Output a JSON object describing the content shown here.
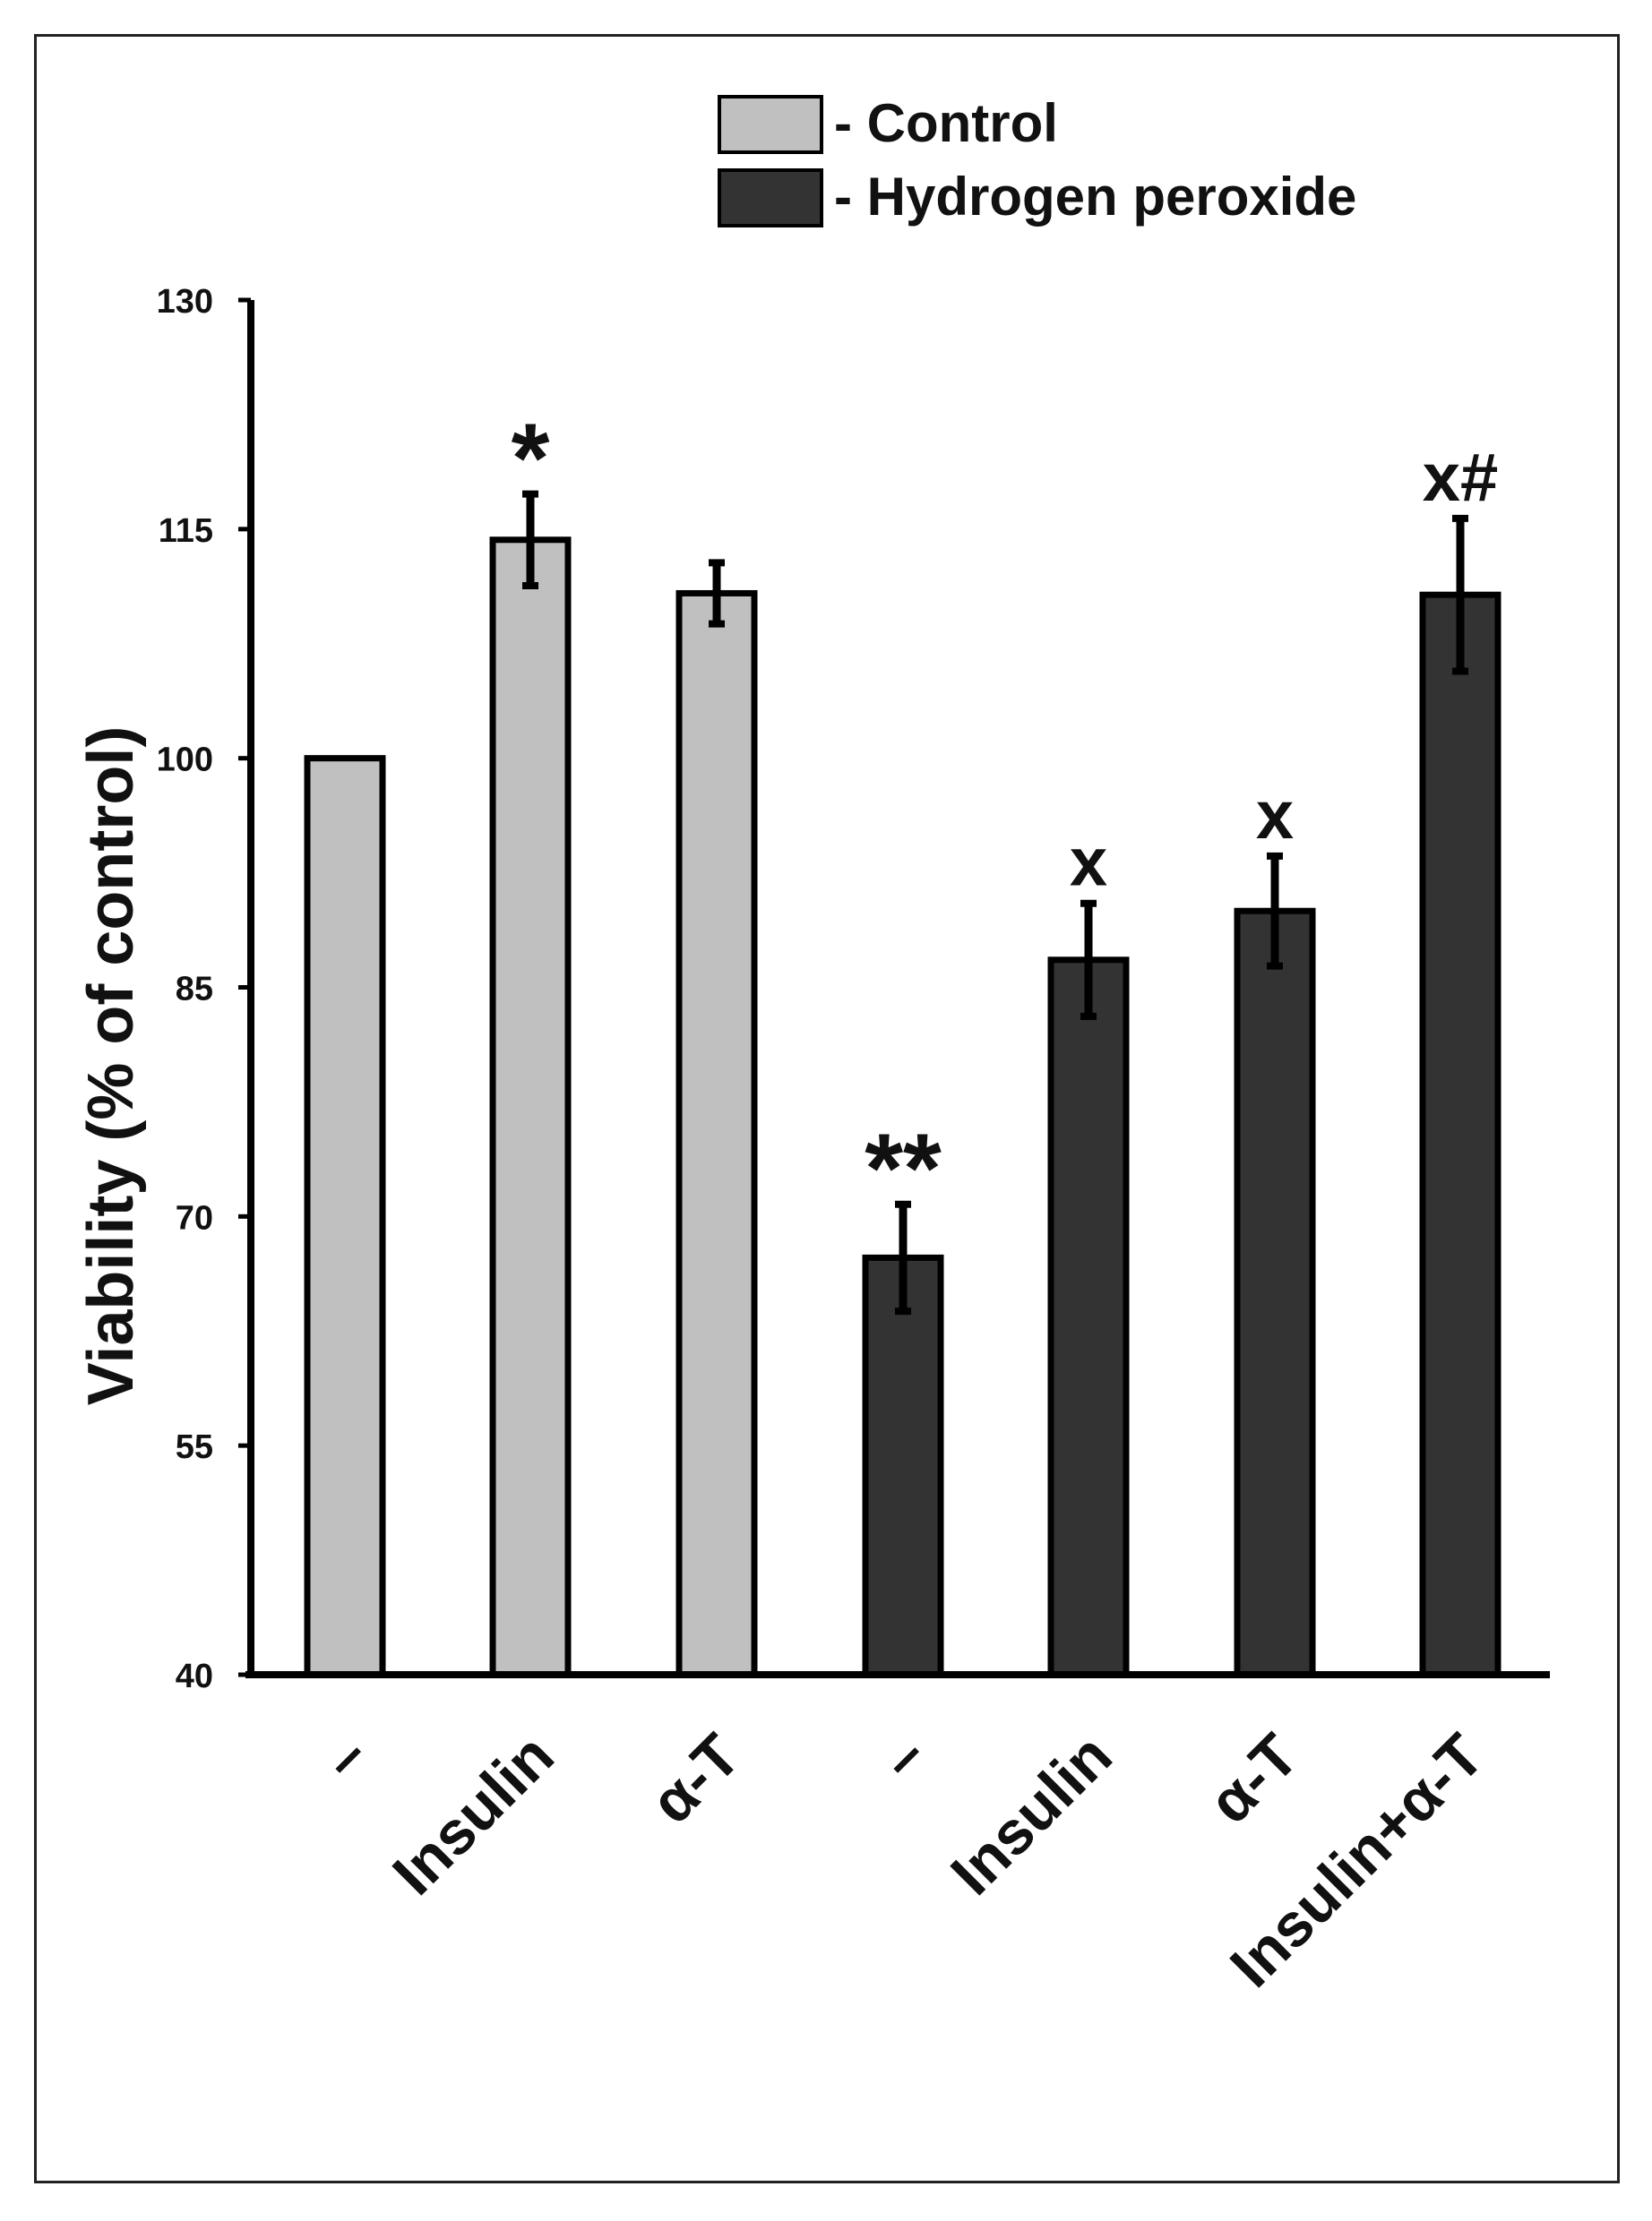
{
  "chart_data": {
    "type": "bar",
    "title": "",
    "ylabel": "Viability (% of control)",
    "xlabel": "",
    "ylim": [
      40,
      130
    ],
    "yticks": [
      40,
      55,
      70,
      85,
      100,
      115,
      130
    ],
    "grid": false,
    "legend_position": "top-right",
    "colors": {
      "control": "#c0c0c0",
      "hydrogen_peroxide": "#333333"
    },
    "legend": [
      {
        "label": "- Control",
        "series": "control"
      },
      {
        "label": "- Hydrogen peroxide",
        "series": "hydrogen_peroxide"
      }
    ],
    "bars": [
      {
        "category": "–",
        "series": "control",
        "value": 100,
        "error": 0,
        "annotation": ""
      },
      {
        "category": "Insulin",
        "series": "control",
        "value": 114.3,
        "error": 3,
        "annotation": "*"
      },
      {
        "category": "α-T",
        "series": "control",
        "value": 110.8,
        "error": 2,
        "annotation": ""
      },
      {
        "category": "–",
        "series": "hydrogen_peroxide",
        "value": 67.3,
        "error": 3.5,
        "annotation": "**"
      },
      {
        "category": "Insulin",
        "series": "hydrogen_peroxide",
        "value": 86.8,
        "error": 3.7,
        "annotation": "x"
      },
      {
        "category": "α-T",
        "series": "hydrogen_peroxide",
        "value": 90,
        "error": 3.6,
        "annotation": "x"
      },
      {
        "category": "Insulin+α-T",
        "series": "hydrogen_peroxide",
        "value": 110.7,
        "error": 5,
        "annotation": "x#"
      }
    ]
  }
}
